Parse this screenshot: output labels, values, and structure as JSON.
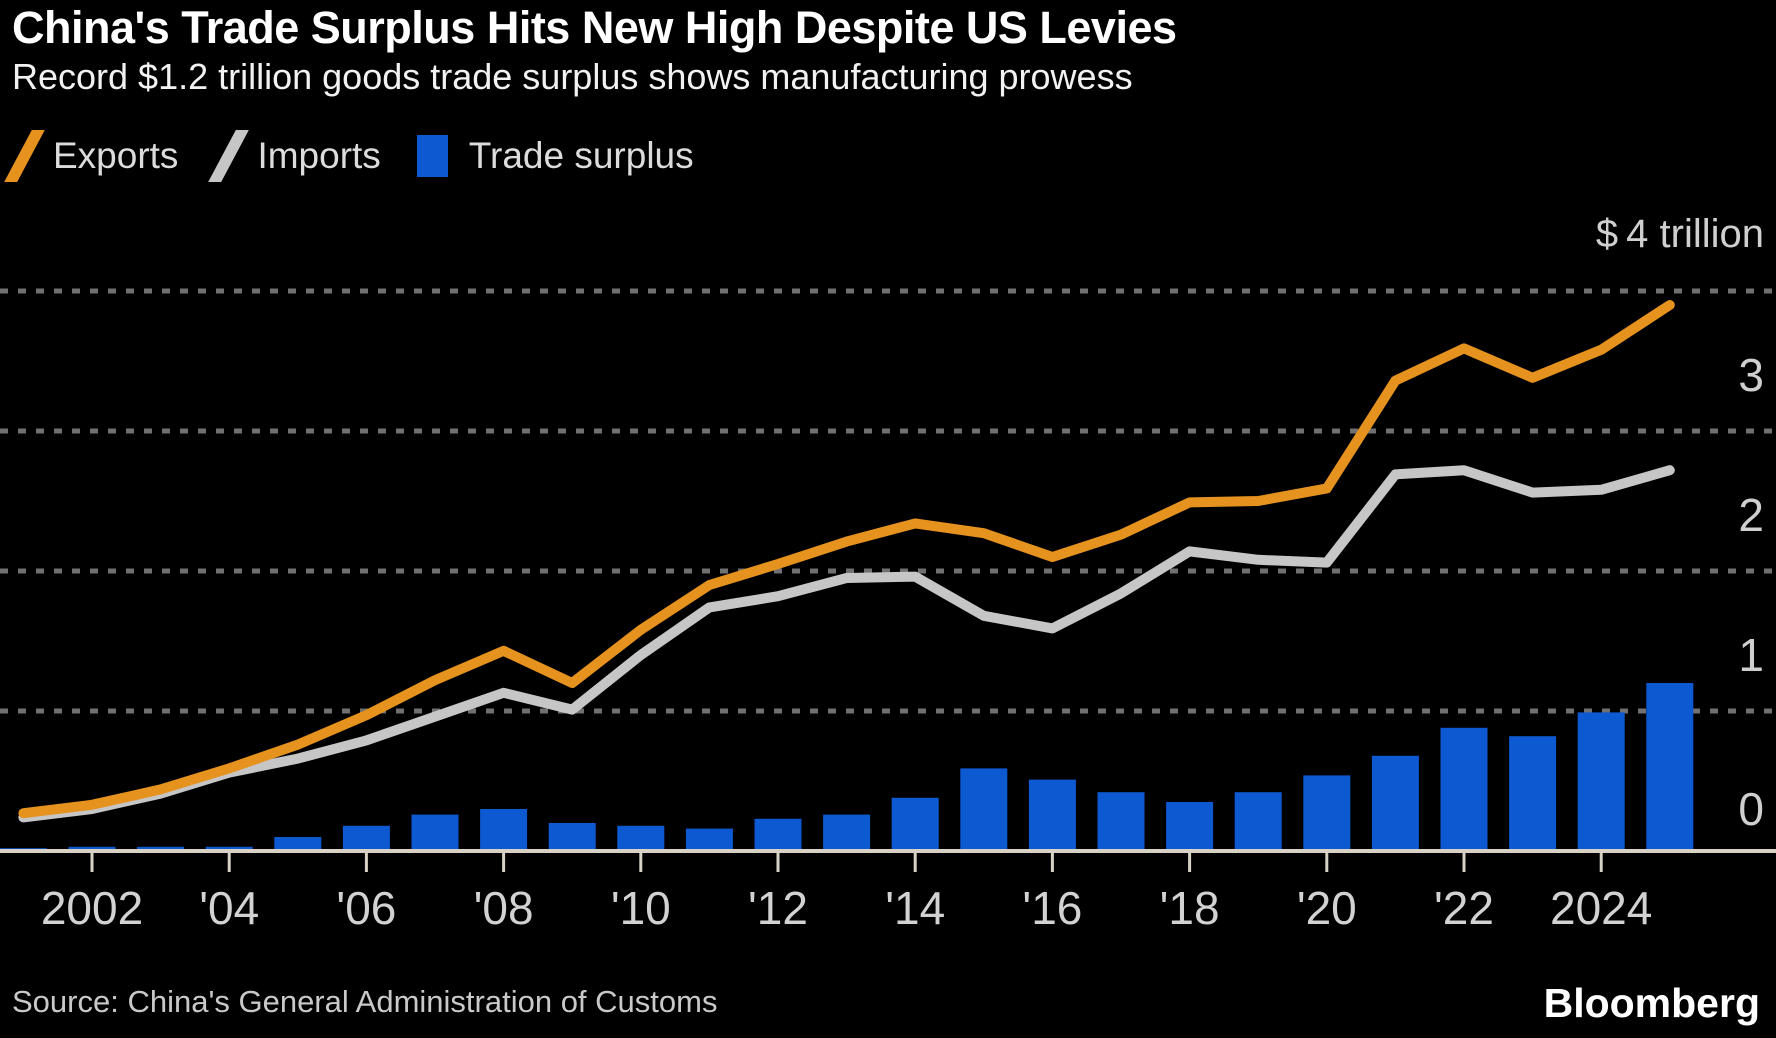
{
  "header": {
    "title": "China's Trade Surplus Hits New High Despite US Levies",
    "subtitle": "Record $1.2 trillion goods trade surplus shows manufacturing prowess"
  },
  "legend": [
    {
      "label": "Exports",
      "swatch": "line",
      "color": "#e6921e"
    },
    {
      "label": "Imports",
      "swatch": "line",
      "color": "#c6c6c6"
    },
    {
      "label": "Trade surplus",
      "swatch": "square",
      "color": "#0d59d2"
    }
  ],
  "footer": {
    "source": "Source: China's General Administration of Customs",
    "brand": "Bloomberg"
  },
  "colors": {
    "background": "#000000",
    "title_text": "#ffffff",
    "legend_text": "#dcdcdc",
    "gridline": "#707070",
    "axis_line": "#d8d1c5",
    "tick_label": "#d2d2d2",
    "export_orange": "#e6921e",
    "import_gray": "#c6c6c6",
    "surplus_blue": "#0d59d2"
  },
  "chart_data": {
    "type": "combo",
    "title": "China's Trade Surplus Hits New High Despite US Levies",
    "subtitle": "Record $1.2 trillion goods trade surplus shows manufacturing prowess",
    "unit": "USD trillion",
    "x": [
      2001,
      2002,
      2003,
      2004,
      2005,
      2006,
      2007,
      2008,
      2009,
      2010,
      2011,
      2012,
      2013,
      2014,
      2015,
      2016,
      2017,
      2018,
      2019,
      2020,
      2021,
      2022,
      2023,
      2024,
      2025
    ],
    "series": [
      {
        "name": "Exports",
        "type": "line",
        "color": "#e6921e",
        "values": [
          0.27,
          0.33,
          0.44,
          0.59,
          0.76,
          0.97,
          1.22,
          1.43,
          1.2,
          1.58,
          1.9,
          2.05,
          2.21,
          2.34,
          2.27,
          2.1,
          2.26,
          2.49,
          2.5,
          2.59,
          3.36,
          3.59,
          3.38,
          3.58,
          3.9
        ]
      },
      {
        "name": "Imports",
        "type": "line",
        "color": "#c6c6c6",
        "values": [
          0.24,
          0.3,
          0.41,
          0.56,
          0.66,
          0.79,
          0.96,
          1.13,
          1.01,
          1.4,
          1.74,
          1.82,
          1.95,
          1.96,
          1.68,
          1.59,
          1.84,
          2.14,
          2.08,
          2.06,
          2.69,
          2.72,
          2.56,
          2.58,
          2.72
        ]
      },
      {
        "name": "Trade surplus",
        "type": "bar",
        "color": "#0d59d2",
        "values": [
          0.02,
          0.03,
          0.03,
          0.03,
          0.1,
          0.18,
          0.26,
          0.3,
          0.2,
          0.18,
          0.16,
          0.23,
          0.26,
          0.38,
          0.59,
          0.51,
          0.42,
          0.35,
          0.42,
          0.54,
          0.68,
          0.88,
          0.82,
          0.99,
          1.2
        ]
      }
    ],
    "ylim": [
      0,
      4
    ],
    "yticks": [
      {
        "value": 4,
        "label": "$ 4 trillion"
      },
      {
        "value": 3,
        "label": "3"
      },
      {
        "value": 2,
        "label": "2"
      },
      {
        "value": 1,
        "label": "1"
      },
      {
        "value": 0,
        "label": "0"
      }
    ],
    "xticks": [
      {
        "year": 2002,
        "label": "2002"
      },
      {
        "year": 2004,
        "label": "'04"
      },
      {
        "year": 2006,
        "label": "'06"
      },
      {
        "year": 2008,
        "label": "'08"
      },
      {
        "year": 2010,
        "label": "'10"
      },
      {
        "year": 2012,
        "label": "'12"
      },
      {
        "year": 2014,
        "label": "'14"
      },
      {
        "year": 2016,
        "label": "'16"
      },
      {
        "year": 2018,
        "label": "'18"
      },
      {
        "year": 2020,
        "label": "'20"
      },
      {
        "year": 2022,
        "label": "'22"
      },
      {
        "year": 2024,
        "label": "2024"
      }
    ],
    "grid": "horizontal-dashed",
    "legend_position": "top-left",
    "source": "Source: China's General Administration of Customs"
  }
}
